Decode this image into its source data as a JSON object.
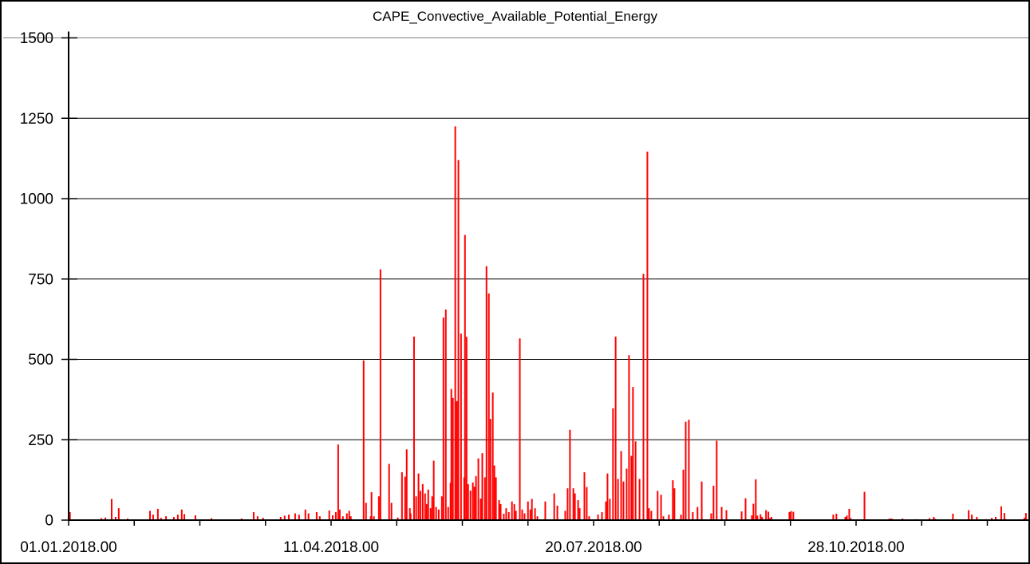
{
  "window": {
    "background": "#ffffff",
    "border_color": "#000000"
  },
  "chart_data": {
    "type": "bar",
    "title": "CAPE_Convective_Available_Potential_Energy",
    "xlabel": "",
    "ylabel": "",
    "x_unit": "days since 01.01.2018 00:00",
    "ylim": [
      0,
      1500
    ],
    "y_ticks": [
      0,
      250,
      500,
      750,
      1000,
      1250,
      1500
    ],
    "x_tick_days": [
      0,
      25,
      50,
      75,
      100,
      125,
      150,
      175,
      200,
      225,
      250,
      275,
      300,
      325,
      350
    ],
    "x_domain_days": [
      0,
      366
    ],
    "x_labels": [
      {
        "day": 0,
        "label": "01.01.2018.00"
      },
      {
        "day": 100,
        "label": "11.04.2018.00"
      },
      {
        "day": 200,
        "label": "20.07.2018.00"
      },
      {
        "day": 300,
        "label": "28.10.2018.00"
      }
    ],
    "grid": true,
    "legend": null,
    "colors": {
      "series": "#ff0000",
      "grid": "#000000",
      "axis": "#000000",
      "top_border": "#808080",
      "background": "#ffffff"
    },
    "points": [
      [
        0.5,
        25
      ],
      [
        12.5,
        6
      ],
      [
        14,
        8
      ],
      [
        16.4,
        66
      ],
      [
        17.9,
        10
      ],
      [
        19.1,
        37
      ],
      [
        22.5,
        5
      ],
      [
        31,
        29
      ],
      [
        32.2,
        17
      ],
      [
        34,
        35
      ],
      [
        35.2,
        7
      ],
      [
        37.1,
        12
      ],
      [
        40.1,
        10
      ],
      [
        41.6,
        17
      ],
      [
        43.1,
        33
      ],
      [
        44.1,
        19
      ],
      [
        48.3,
        15
      ],
      [
        54.4,
        6
      ],
      [
        65.9,
        5
      ],
      [
        70.5,
        25
      ],
      [
        72,
        12
      ],
      [
        74.1,
        7
      ],
      [
        80.8,
        10
      ],
      [
        82.3,
        14
      ],
      [
        83.9,
        17
      ],
      [
        86.3,
        21
      ],
      [
        87.8,
        17
      ],
      [
        90.2,
        33
      ],
      [
        91.4,
        21
      ],
      [
        94.5,
        25
      ],
      [
        95.7,
        12
      ],
      [
        99.3,
        30
      ],
      [
        100.6,
        15
      ],
      [
        101.8,
        25
      ],
      [
        102.7,
        235
      ],
      [
        103.3,
        33
      ],
      [
        104.5,
        12
      ],
      [
        106,
        21
      ],
      [
        106.9,
        29
      ],
      [
        107.5,
        12
      ],
      [
        112.4,
        497
      ],
      [
        113.3,
        54
      ],
      [
        115.1,
        12
      ],
      [
        115.4,
        87
      ],
      [
        116.3,
        12
      ],
      [
        118.2,
        74
      ],
      [
        118.8,
        780
      ],
      [
        122.1,
        175
      ],
      [
        123,
        54
      ],
      [
        125.4,
        8
      ],
      [
        127,
        149
      ],
      [
        128.2,
        135
      ],
      [
        128.8,
        220
      ],
      [
        130,
        37
      ],
      [
        130.3,
        21
      ],
      [
        131.6,
        571
      ],
      [
        132.4,
        74
      ],
      [
        133.3,
        145
      ],
      [
        134,
        91
      ],
      [
        134.9,
        112
      ],
      [
        135.8,
        83
      ],
      [
        136.4,
        50
      ],
      [
        137,
        95
      ],
      [
        137.9,
        37
      ],
      [
        138.5,
        74
      ],
      [
        139.1,
        185
      ],
      [
        140,
        41
      ],
      [
        141,
        33
      ],
      [
        142.2,
        74
      ],
      [
        142.8,
        630
      ],
      [
        143.7,
        655
      ],
      [
        144.6,
        41
      ],
      [
        145.5,
        116
      ],
      [
        145.8,
        408
      ],
      [
        146.4,
        380
      ],
      [
        147.3,
        1225
      ],
      [
        147.9,
        370
      ],
      [
        148.5,
        1120
      ],
      [
        149.5,
        580
      ],
      [
        150.7,
        133
      ],
      [
        151,
        887
      ],
      [
        151.6,
        570
      ],
      [
        152.2,
        112
      ],
      [
        153.1,
        92
      ],
      [
        154,
        117
      ],
      [
        154.6,
        104
      ],
      [
        155.2,
        137
      ],
      [
        156.1,
        192
      ],
      [
        157,
        67
      ],
      [
        157.6,
        208
      ],
      [
        158.6,
        133
      ],
      [
        159.2,
        790
      ],
      [
        160.1,
        705
      ],
      [
        160.7,
        315
      ],
      [
        161.6,
        397
      ],
      [
        162.2,
        170
      ],
      [
        162.8,
        133
      ],
      [
        164,
        62
      ],
      [
        164.6,
        50
      ],
      [
        165.8,
        20
      ],
      [
        166.7,
        37
      ],
      [
        167.7,
        25
      ],
      [
        168.9,
        58
      ],
      [
        169.8,
        50
      ],
      [
        170.4,
        29
      ],
      [
        171.9,
        565
      ],
      [
        172.8,
        33
      ],
      [
        173.7,
        21
      ],
      [
        175,
        58
      ],
      [
        175.9,
        33
      ],
      [
        176.5,
        66
      ],
      [
        177.7,
        37
      ],
      [
        178.6,
        12
      ],
      [
        181.6,
        58
      ],
      [
        185,
        83
      ],
      [
        186.2,
        45
      ],
      [
        189.2,
        29
      ],
      [
        190.1,
        99
      ],
      [
        191,
        281
      ],
      [
        192.3,
        99
      ],
      [
        192.9,
        83
      ],
      [
        194.1,
        62
      ],
      [
        194.7,
        37
      ],
      [
        196.5,
        149
      ],
      [
        197.4,
        103
      ],
      [
        198.3,
        12
      ],
      [
        201.7,
        17
      ],
      [
        203.2,
        25
      ],
      [
        204.7,
        58
      ],
      [
        205.3,
        145
      ],
      [
        206.2,
        66
      ],
      [
        207.4,
        348
      ],
      [
        208.4,
        571
      ],
      [
        209.3,
        128
      ],
      [
        210.5,
        215
      ],
      [
        211.4,
        120
      ],
      [
        212.6,
        160
      ],
      [
        213.5,
        513
      ],
      [
        214.4,
        200
      ],
      [
        215,
        414
      ],
      [
        216,
        245
      ],
      [
        217.5,
        128
      ],
      [
        219,
        766
      ],
      [
        220.5,
        1146
      ],
      [
        221.1,
        37
      ],
      [
        222,
        29
      ],
      [
        224.4,
        91
      ],
      [
        225.7,
        79
      ],
      [
        226.6,
        12
      ],
      [
        228.7,
        17
      ],
      [
        230.2,
        124
      ],
      [
        230.8,
        99
      ],
      [
        233.3,
        17
      ],
      [
        234.2,
        157
      ],
      [
        235.1,
        306
      ],
      [
        236.3,
        312
      ],
      [
        237.8,
        25
      ],
      [
        239.6,
        41
      ],
      [
        241.2,
        120
      ],
      [
        244.8,
        21
      ],
      [
        245.7,
        107
      ],
      [
        246.9,
        247
      ],
      [
        248.8,
        41
      ],
      [
        250.6,
        31
      ],
      [
        256.4,
        27
      ],
      [
        257.9,
        68
      ],
      [
        260.3,
        15
      ],
      [
        260.9,
        51
      ],
      [
        261.8,
        127
      ],
      [
        262.4,
        14
      ],
      [
        263.6,
        18
      ],
      [
        264.2,
        10
      ],
      [
        265.7,
        31
      ],
      [
        266.6,
        26
      ],
      [
        267.2,
        6
      ],
      [
        267.8,
        10
      ],
      [
        274.6,
        25
      ],
      [
        275.2,
        28
      ],
      [
        276.1,
        26
      ],
      [
        291.3,
        17
      ],
      [
        292.5,
        20
      ],
      [
        295.9,
        10
      ],
      [
        296.5,
        14
      ],
      [
        297.4,
        35
      ],
      [
        298,
        6
      ],
      [
        303.2,
        88
      ],
      [
        312.6,
        4
      ],
      [
        313.2,
        5
      ],
      [
        313.8,
        4
      ],
      [
        317.7,
        5
      ],
      [
        322.9,
        3
      ],
      [
        328,
        6
      ],
      [
        329.6,
        10
      ],
      [
        330.2,
        4
      ],
      [
        336.9,
        20
      ],
      [
        338.1,
        3
      ],
      [
        342.9,
        31
      ],
      [
        344.1,
        17
      ],
      [
        346,
        10
      ],
      [
        349.5,
        3
      ],
      [
        351.7,
        7
      ],
      [
        353.2,
        10
      ],
      [
        355.3,
        43
      ],
      [
        356.5,
        22
      ],
      [
        357.1,
        3
      ],
      [
        364.1,
        7
      ],
      [
        364.7,
        22
      ]
    ]
  }
}
